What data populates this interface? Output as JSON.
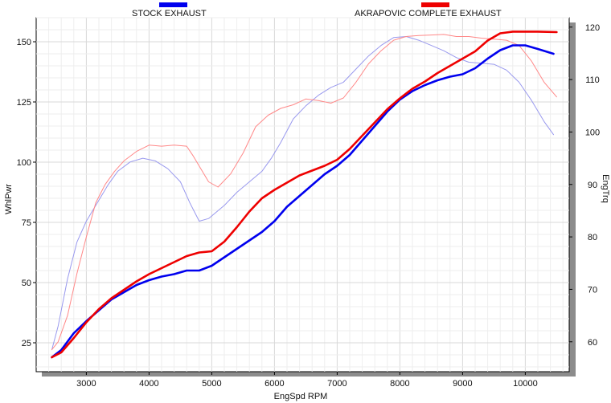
{
  "chart_data": {
    "type": "line",
    "xlabel": "EngSpd  RPM",
    "ylabel": "WhlPwr",
    "y2label": "EngTrq",
    "xlim": [
      2200,
      10700
    ],
    "ylim": [
      13,
      160
    ],
    "y2lim": [
      54.3,
      121.8
    ],
    "x_ticks": [
      3000,
      4000,
      5000,
      6000,
      7000,
      8000,
      9000,
      10000
    ],
    "y_ticks": [
      25,
      50,
      75,
      100,
      125,
      150
    ],
    "y2_ticks": [
      60,
      70,
      80,
      90,
      100,
      110,
      120
    ],
    "grid": true,
    "legend_position": "top",
    "series": [
      {
        "name": "STOCK EXHAUST",
        "measure": "WhlPwr",
        "axis": "left",
        "color": "#0000ee",
        "x": [
          2450,
          2600,
          2800,
          3000,
          3200,
          3400,
          3600,
          3800,
          4000,
          4200,
          4400,
          4600,
          4800,
          5000,
          5200,
          5400,
          5600,
          5800,
          6000,
          6200,
          6400,
          6600,
          6800,
          7000,
          7200,
          7400,
          7600,
          7800,
          8000,
          8200,
          8400,
          8600,
          8800,
          9000,
          9200,
          9400,
          9600,
          9800,
          10000,
          10200,
          10450
        ],
        "y": [
          19,
          22,
          29,
          34,
          38.5,
          43,
          46,
          49,
          51,
          52.5,
          53.5,
          55,
          55,
          57,
          60.5,
          64,
          67.5,
          71,
          75.5,
          81.5,
          86,
          90.5,
          95,
          98.5,
          103,
          109,
          115,
          121,
          126,
          129.5,
          132,
          134,
          135.5,
          136.5,
          139,
          143,
          146.5,
          148.5,
          148.5,
          147,
          145
        ]
      },
      {
        "name": "AKRAPOVIC COMPLETE EXHAUST",
        "measure": "WhlPwr",
        "axis": "left",
        "color": "#ee0000",
        "x": [
          2450,
          2600,
          2800,
          3000,
          3200,
          3400,
          3600,
          3800,
          4000,
          4200,
          4400,
          4600,
          4800,
          5000,
          5200,
          5400,
          5600,
          5800,
          6000,
          6200,
          6400,
          6600,
          6800,
          7000,
          7200,
          7400,
          7600,
          7800,
          8000,
          8200,
          8400,
          8600,
          8800,
          9000,
          9200,
          9400,
          9600,
          9800,
          10000,
          10200,
          10500
        ],
        "y": [
          19,
          21,
          27,
          33.5,
          39,
          43.5,
          47,
          50.5,
          53.5,
          56,
          58.5,
          61,
          62.5,
          63,
          67,
          73,
          79.5,
          85,
          88.5,
          91.5,
          94.5,
          96.5,
          98.5,
          101,
          105.5,
          111,
          116.5,
          122,
          126.5,
          130.5,
          133.5,
          137,
          140,
          143,
          146,
          150.5,
          153.5,
          154.2,
          154.2,
          154.2,
          154
        ]
      },
      {
        "name": "STOCK EXHAUST",
        "measure": "EngTrq",
        "axis": "right",
        "color": "#9999ee",
        "x": [
          2450,
          2550,
          2700,
          2850,
          3000,
          3100,
          3200,
          3350,
          3500,
          3700,
          3900,
          4100,
          4300,
          4500,
          4650,
          4800,
          4950,
          5200,
          5400,
          5600,
          5800,
          5950,
          6100,
          6300,
          6500,
          6700,
          6900,
          7100,
          7300,
          7500,
          7700,
          7900,
          8100,
          8300,
          8500,
          8700,
          8900,
          9100,
          9300,
          9500,
          9700,
          9900,
          10100,
          10300,
          10450
        ],
        "y": [
          58.5,
          63,
          72,
          79,
          83,
          85,
          87,
          90,
          92.5,
          94.3,
          95,
          94.5,
          93,
          90.5,
          86.5,
          83,
          83.5,
          86,
          88.5,
          90.5,
          92.5,
          95,
          98,
          102.5,
          105,
          107,
          108.5,
          109.5,
          112,
          114.5,
          116.5,
          118,
          118.2,
          117.5,
          116.5,
          115.5,
          114.2,
          113.3,
          113.1,
          112.9,
          111.8,
          109.5,
          106,
          102,
          99.5
        ]
      },
      {
        "name": "AKRAPOVIC COMPLETE EXHAUST",
        "measure": "EngTrq",
        "axis": "right",
        "color": "#ff8888",
        "x": [
          2450,
          2550,
          2700,
          2850,
          3000,
          3150,
          3300,
          3450,
          3600,
          3800,
          4000,
          4200,
          4400,
          4600,
          4700,
          4800,
          4950,
          5100,
          5300,
          5500,
          5700,
          5900,
          6100,
          6300,
          6500,
          6700,
          6900,
          7100,
          7300,
          7500,
          7700,
          7900,
          8100,
          8300,
          8500,
          8700,
          8900,
          9100,
          9300,
          9500,
          9700,
          9900,
          10100,
          10300,
          10500
        ],
        "y": [
          58.5,
          60,
          65,
          73,
          80,
          86.5,
          90,
          92.5,
          94.5,
          96.3,
          97.5,
          97.3,
          97.5,
          97.3,
          95.5,
          93.5,
          90.5,
          89.5,
          92,
          96,
          101,
          103.2,
          104.5,
          105.2,
          106.3,
          106,
          105.5,
          106.5,
          109.5,
          113,
          115.5,
          117.5,
          118.2,
          118.4,
          118.5,
          118.6,
          118.2,
          118.2,
          117.9,
          117.7,
          117.5,
          116.5,
          113.5,
          109.5,
          106.7
        ]
      }
    ]
  }
}
